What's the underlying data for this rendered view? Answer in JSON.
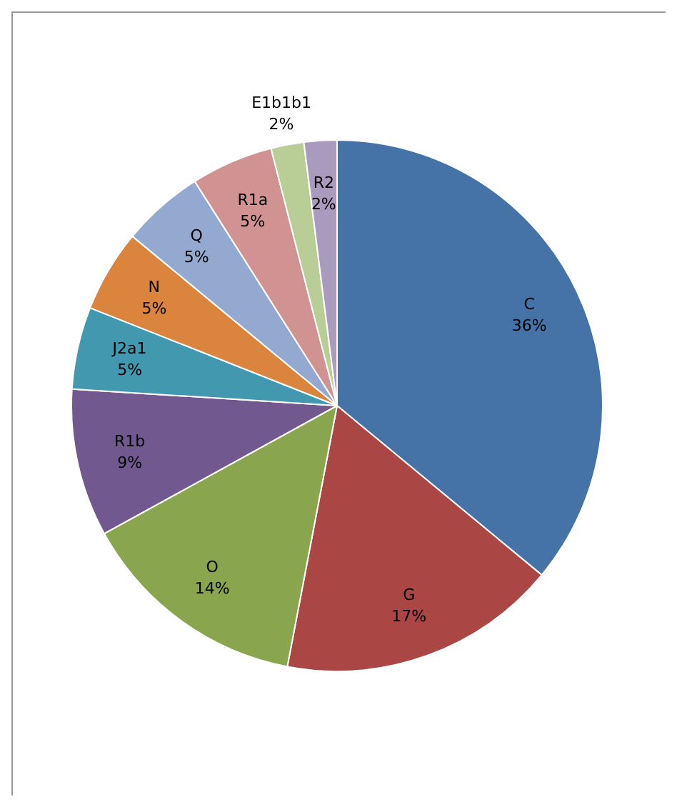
{
  "chart_data": {
    "type": "pie",
    "categories": [
      "C",
      "G",
      "O",
      "R1b",
      "J2a1",
      "N",
      "Q",
      "R1a",
      "E1b1b1",
      "R2"
    ],
    "values": [
      36,
      17,
      14,
      9,
      5,
      5,
      5,
      5,
      2,
      2
    ],
    "value_labels": [
      "36%",
      "17%",
      "14%",
      "9%",
      "5%",
      "5%",
      "5%",
      "5%",
      "2%",
      "2%"
    ],
    "colors": [
      "#4572a7",
      "#aa4643",
      "#89a54e",
      "#71588f",
      "#4198af",
      "#db843d",
      "#93a9cf",
      "#d19392",
      "#b9cd96",
      "#a99bbd"
    ],
    "legend": false
  }
}
